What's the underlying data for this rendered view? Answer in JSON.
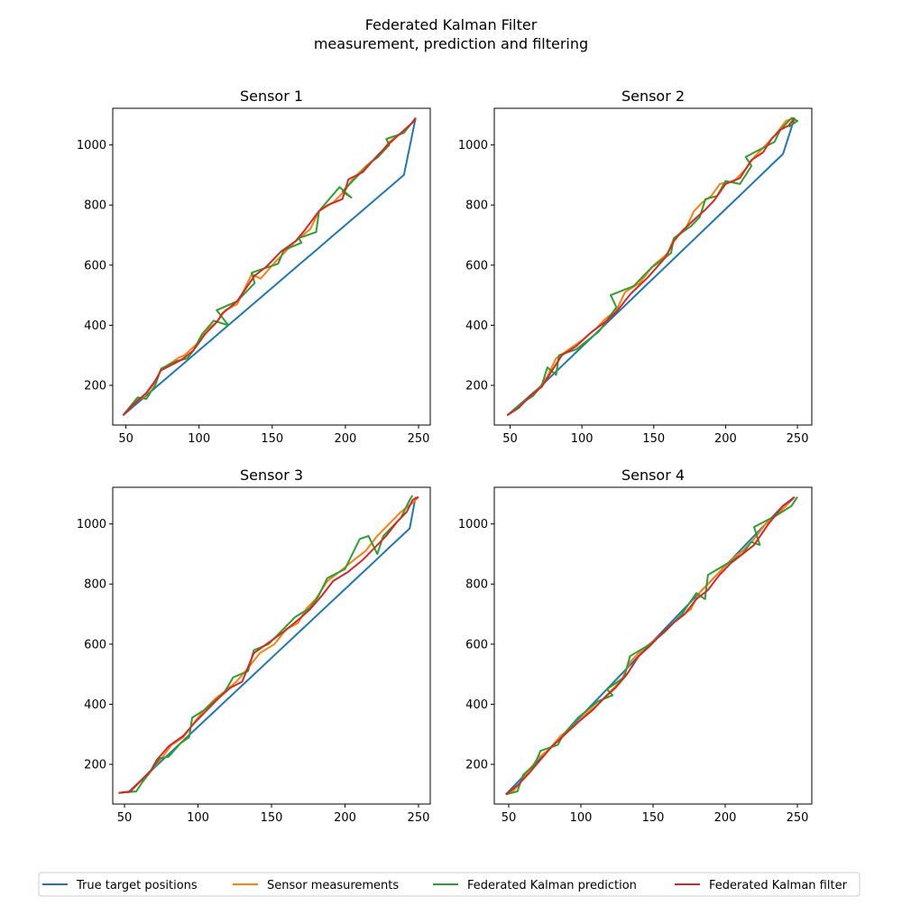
{
  "figure": {
    "title_line1": "Federated Kalman Filter",
    "title_line2": "measurement, prediction and filtering"
  },
  "legend": {
    "entries": [
      {
        "label": "True target positions",
        "color": "#1f77b4"
      },
      {
        "label": "Sensor measurements",
        "color": "#ff7f0e"
      },
      {
        "label": "Federated Kalman prediction",
        "color": "#2ca02c"
      },
      {
        "label": "Federated Kalman filter",
        "color": "#d62728"
      }
    ]
  },
  "chart_data": [
    {
      "type": "line",
      "title": "Sensor 1",
      "xlim": [
        41,
        258
      ],
      "ylim": [
        68,
        1122
      ],
      "xticks": [
        50,
        100,
        150,
        200,
        250
      ],
      "yticks": [
        200,
        400,
        600,
        800,
        1000
      ],
      "series": [
        {
          "name": "True target positions",
          "color": "#1f77b4",
          "x": [
            48,
            60,
            72,
            84,
            96,
            108,
            120,
            132,
            144,
            156,
            168,
            180,
            192,
            204,
            216,
            228,
            240,
            248
          ],
          "y": [
            100,
            150,
            200,
            250,
            300,
            350,
            400,
            450,
            500,
            550,
            600,
            650,
            700,
            750,
            800,
            850,
            900,
            1090
          ]
        },
        {
          "name": "Sensor measurements",
          "color": "#ff7f0e",
          "x": [
            48,
            56,
            62,
            70,
            74,
            86,
            90,
            100,
            104,
            112,
            118,
            126,
            136,
            142,
            152,
            160,
            166,
            176,
            182,
            192,
            200,
            204,
            214,
            222,
            230,
            238,
            246,
            248
          ],
          "y": [
            100,
            148,
            160,
            210,
            252,
            292,
            300,
            345,
            380,
            410,
            450,
            470,
            570,
            555,
            610,
            650,
            680,
            720,
            780,
            810,
            850,
            880,
            930,
            960,
            1010,
            1040,
            1075,
            1090
          ]
        },
        {
          "name": "Federated Kalman prediction",
          "color": "#2ca02c",
          "x": [
            48,
            58,
            64,
            70,
            74,
            84,
            92,
            96,
            102,
            110,
            120,
            112,
            126,
            138,
            136,
            154,
            158,
            170,
            168,
            180,
            182,
            196,
            204,
            198,
            210,
            218,
            222,
            230,
            228,
            240,
            248
          ],
          "y": [
            100,
            160,
            155,
            200,
            255,
            280,
            290,
            315,
            370,
            415,
            400,
            450,
            480,
            540,
            575,
            605,
            650,
            675,
            690,
            710,
            780,
            860,
            825,
            845,
            905,
            945,
            958,
            1000,
            1020,
            1040,
            1090
          ]
        },
        {
          "name": "Federated Kalman filter",
          "color": "#d62728",
          "x": [
            48,
            56,
            64,
            70,
            74,
            88,
            96,
            104,
            112,
            116,
            120,
            126,
            138,
            146,
            156,
            166,
            172,
            182,
            188,
            198,
            202,
            212,
            220,
            230,
            238,
            246,
            248
          ],
          "y": [
            100,
            140,
            175,
            215,
            250,
            285,
            315,
            370,
            410,
            440,
            455,
            480,
            565,
            595,
            645,
            680,
            715,
            780,
            800,
            820,
            885,
            910,
            955,
            1005,
            1040,
            1075,
            1090
          ]
        }
      ]
    },
    {
      "type": "line",
      "title": "Sensor 2",
      "xlim": [
        39,
        260
      ],
      "ylim": [
        68,
        1122
      ],
      "xticks": [
        50,
        100,
        150,
        200,
        250
      ],
      "yticks": [
        200,
        400,
        600,
        800,
        1000
      ],
      "series": [
        {
          "name": "True target positions",
          "color": "#1f77b4",
          "x": [
            48,
            60,
            72,
            84,
            96,
            108,
            120,
            132,
            144,
            156,
            168,
            180,
            192,
            204,
            216,
            228,
            240,
            248
          ],
          "y": [
            100,
            150,
            200,
            255,
            310,
            365,
            420,
            475,
            530,
            585,
            640,
            695,
            750,
            805,
            860,
            915,
            970,
            1090
          ]
        },
        {
          "name": "Sensor measurements",
          "color": "#ff7f0e",
          "x": [
            48,
            56,
            64,
            70,
            76,
            82,
            88,
            100,
            110,
            116,
            124,
            130,
            140,
            150,
            160,
            164,
            172,
            178,
            184,
            190,
            196,
            206,
            214,
            220,
            228,
            234,
            242,
            248
          ],
          "y": [
            100,
            130,
            165,
            190,
            230,
            290,
            310,
            350,
            390,
            420,
            450,
            510,
            540,
            600,
            640,
            690,
            720,
            780,
            810,
            830,
            870,
            880,
            920,
            960,
            1000,
            1030,
            1080,
            1090
          ]
        },
        {
          "name": "Federated Kalman prediction",
          "color": "#2ca02c",
          "x": [
            48,
            58,
            66,
            72,
            76,
            82,
            84,
            96,
            112,
            124,
            120,
            136,
            148,
            162,
            164,
            176,
            182,
            186,
            194,
            200,
            210,
            218,
            214,
            228,
            234,
            238,
            246,
            250,
            244
          ],
          "y": [
            100,
            140,
            165,
            200,
            260,
            235,
            300,
            320,
            380,
            460,
            500,
            530,
            590,
            640,
            690,
            730,
            760,
            820,
            830,
            880,
            870,
            930,
            960,
            995,
            1010,
            1050,
            1090,
            1080,
            1060
          ]
        },
        {
          "name": "Federated Kalman filter",
          "color": "#d62728",
          "x": [
            48,
            56,
            64,
            72,
            78,
            86,
            96,
            106,
            116,
            124,
            134,
            146,
            158,
            164,
            170,
            180,
            186,
            192,
            200,
            210,
            218,
            226,
            232,
            238,
            244,
            248
          ],
          "y": [
            100,
            125,
            165,
            195,
            240,
            300,
            330,
            375,
            410,
            445,
            505,
            560,
            625,
            680,
            715,
            760,
            785,
            815,
            870,
            890,
            950,
            975,
            1020,
            1050,
            1065,
            1090
          ]
        }
      ]
    },
    {
      "type": "line",
      "title": "Sensor 3",
      "xlim": [
        42,
        258
      ],
      "ylim": [
        68,
        1122
      ],
      "xticks": [
        50,
        100,
        150,
        200,
        250
      ],
      "yticks": [
        200,
        400,
        600,
        800,
        1000
      ],
      "series": [
        {
          "name": "True target positions",
          "color": "#1f77b4",
          "x": [
            52,
            64,
            76,
            88,
            100,
            112,
            124,
            136,
            148,
            160,
            172,
            184,
            196,
            208,
            220,
            232,
            244,
            248
          ],
          "y": [
            105,
            160,
            215,
            270,
            325,
            380,
            435,
            490,
            545,
            600,
            655,
            710,
            765,
            820,
            875,
            930,
            985,
            1090
          ]
        },
        {
          "name": "Sensor measurements",
          "color": "#ff7f0e",
          "x": [
            46,
            54,
            60,
            66,
            70,
            76,
            82,
            90,
            96,
            104,
            112,
            120,
            126,
            134,
            142,
            152,
            160,
            168,
            174,
            180,
            188,
            196,
            206,
            214,
            222,
            232,
            238,
            246,
            250
          ],
          "y": [
            105,
            110,
            140,
            170,
            190,
            225,
            265,
            290,
            330,
            380,
            420,
            450,
            475,
            520,
            570,
            600,
            650,
            670,
            720,
            750,
            810,
            840,
            880,
            910,
            960,
            1010,
            1040,
            1070,
            1090
          ]
        },
        {
          "name": "Federated Kalman prediction",
          "color": "#2ca02c",
          "x": [
            46,
            58,
            62,
            70,
            74,
            80,
            88,
            94,
            96,
            104,
            118,
            124,
            134,
            138,
            148,
            160,
            166,
            176,
            182,
            188,
            200,
            210,
            216,
            222,
            226,
            238,
            244,
            246
          ],
          "y": [
            105,
            110,
            140,
            190,
            220,
            225,
            270,
            290,
            355,
            380,
            440,
            490,
            510,
            580,
            600,
            660,
            690,
            720,
            760,
            820,
            850,
            950,
            960,
            900,
            960,
            1020,
            1080,
            1095
          ]
        },
        {
          "name": "Federated Kalman filter",
          "color": "#d62728",
          "x": [
            46,
            54,
            62,
            68,
            72,
            80,
            90,
            98,
            106,
            114,
            122,
            130,
            138,
            148,
            158,
            168,
            176,
            184,
            192,
            202,
            212,
            220,
            228,
            236,
            242,
            246,
            250
          ],
          "y": [
            105,
            110,
            150,
            180,
            215,
            260,
            295,
            340,
            380,
            420,
            455,
            475,
            570,
            605,
            640,
            680,
            715,
            760,
            810,
            840,
            880,
            920,
            960,
            1010,
            1040,
            1080,
            1090
          ]
        }
      ]
    },
    {
      "type": "line",
      "title": "Sensor 4",
      "xlim": [
        40,
        260
      ],
      "ylim": [
        68,
        1122
      ],
      "xticks": [
        50,
        100,
        150,
        200,
        250
      ],
      "yticks": [
        200,
        400,
        600,
        800,
        1000
      ],
      "series": [
        {
          "name": "True target positions",
          "color": "#1f77b4",
          "x": [
            48,
            60,
            72,
            84,
            96,
            108,
            120,
            132,
            144,
            156,
            168,
            180,
            192,
            204,
            216,
            228,
            240,
            248
          ],
          "y": [
            100,
            160,
            220,
            280,
            340,
            400,
            460,
            520,
            580,
            640,
            700,
            760,
            820,
            880,
            940,
            1000,
            1060,
            1090
          ]
        },
        {
          "name": "Sensor measurements",
          "color": "#ff7f0e",
          "x": [
            48,
            54,
            62,
            70,
            78,
            86,
            96,
            104,
            112,
            120,
            128,
            134,
            142,
            150,
            160,
            168,
            176,
            182,
            188,
            196,
            204,
            212,
            220,
            228,
            236,
            244,
            248
          ],
          "y": [
            100,
            115,
            165,
            220,
            250,
            295,
            330,
            370,
            400,
            440,
            480,
            540,
            580,
            610,
            650,
            690,
            715,
            770,
            800,
            840,
            880,
            910,
            950,
            1000,
            1030,
            1070,
            1090
          ]
        },
        {
          "name": "Federated Kalman prediction",
          "color": "#2ca02c",
          "x": [
            48,
            56,
            60,
            68,
            72,
            84,
            88,
            98,
            112,
            122,
            118,
            130,
            134,
            148,
            158,
            166,
            170,
            180,
            186,
            188,
            202,
            212,
            218,
            224,
            220,
            236,
            246,
            250
          ],
          "y": [
            100,
            110,
            165,
            200,
            245,
            265,
            300,
            355,
            410,
            430,
            450,
            490,
            560,
            600,
            640,
            680,
            700,
            770,
            750,
            830,
            870,
            900,
            940,
            930,
            990,
            1030,
            1060,
            1090
          ]
        },
        {
          "name": "Federated Kalman filter",
          "color": "#d62728",
          "x": [
            48,
            56,
            64,
            72,
            80,
            88,
            98,
            108,
            116,
            124,
            132,
            140,
            148,
            156,
            164,
            172,
            180,
            188,
            196,
            204,
            212,
            220,
            230,
            240,
            246,
            248
          ],
          "y": [
            100,
            130,
            170,
            215,
            260,
            295,
            340,
            380,
            420,
            455,
            500,
            560,
            595,
            635,
            670,
            700,
            750,
            780,
            830,
            870,
            900,
            930,
            1000,
            1060,
            1080,
            1090
          ]
        }
      ]
    }
  ]
}
